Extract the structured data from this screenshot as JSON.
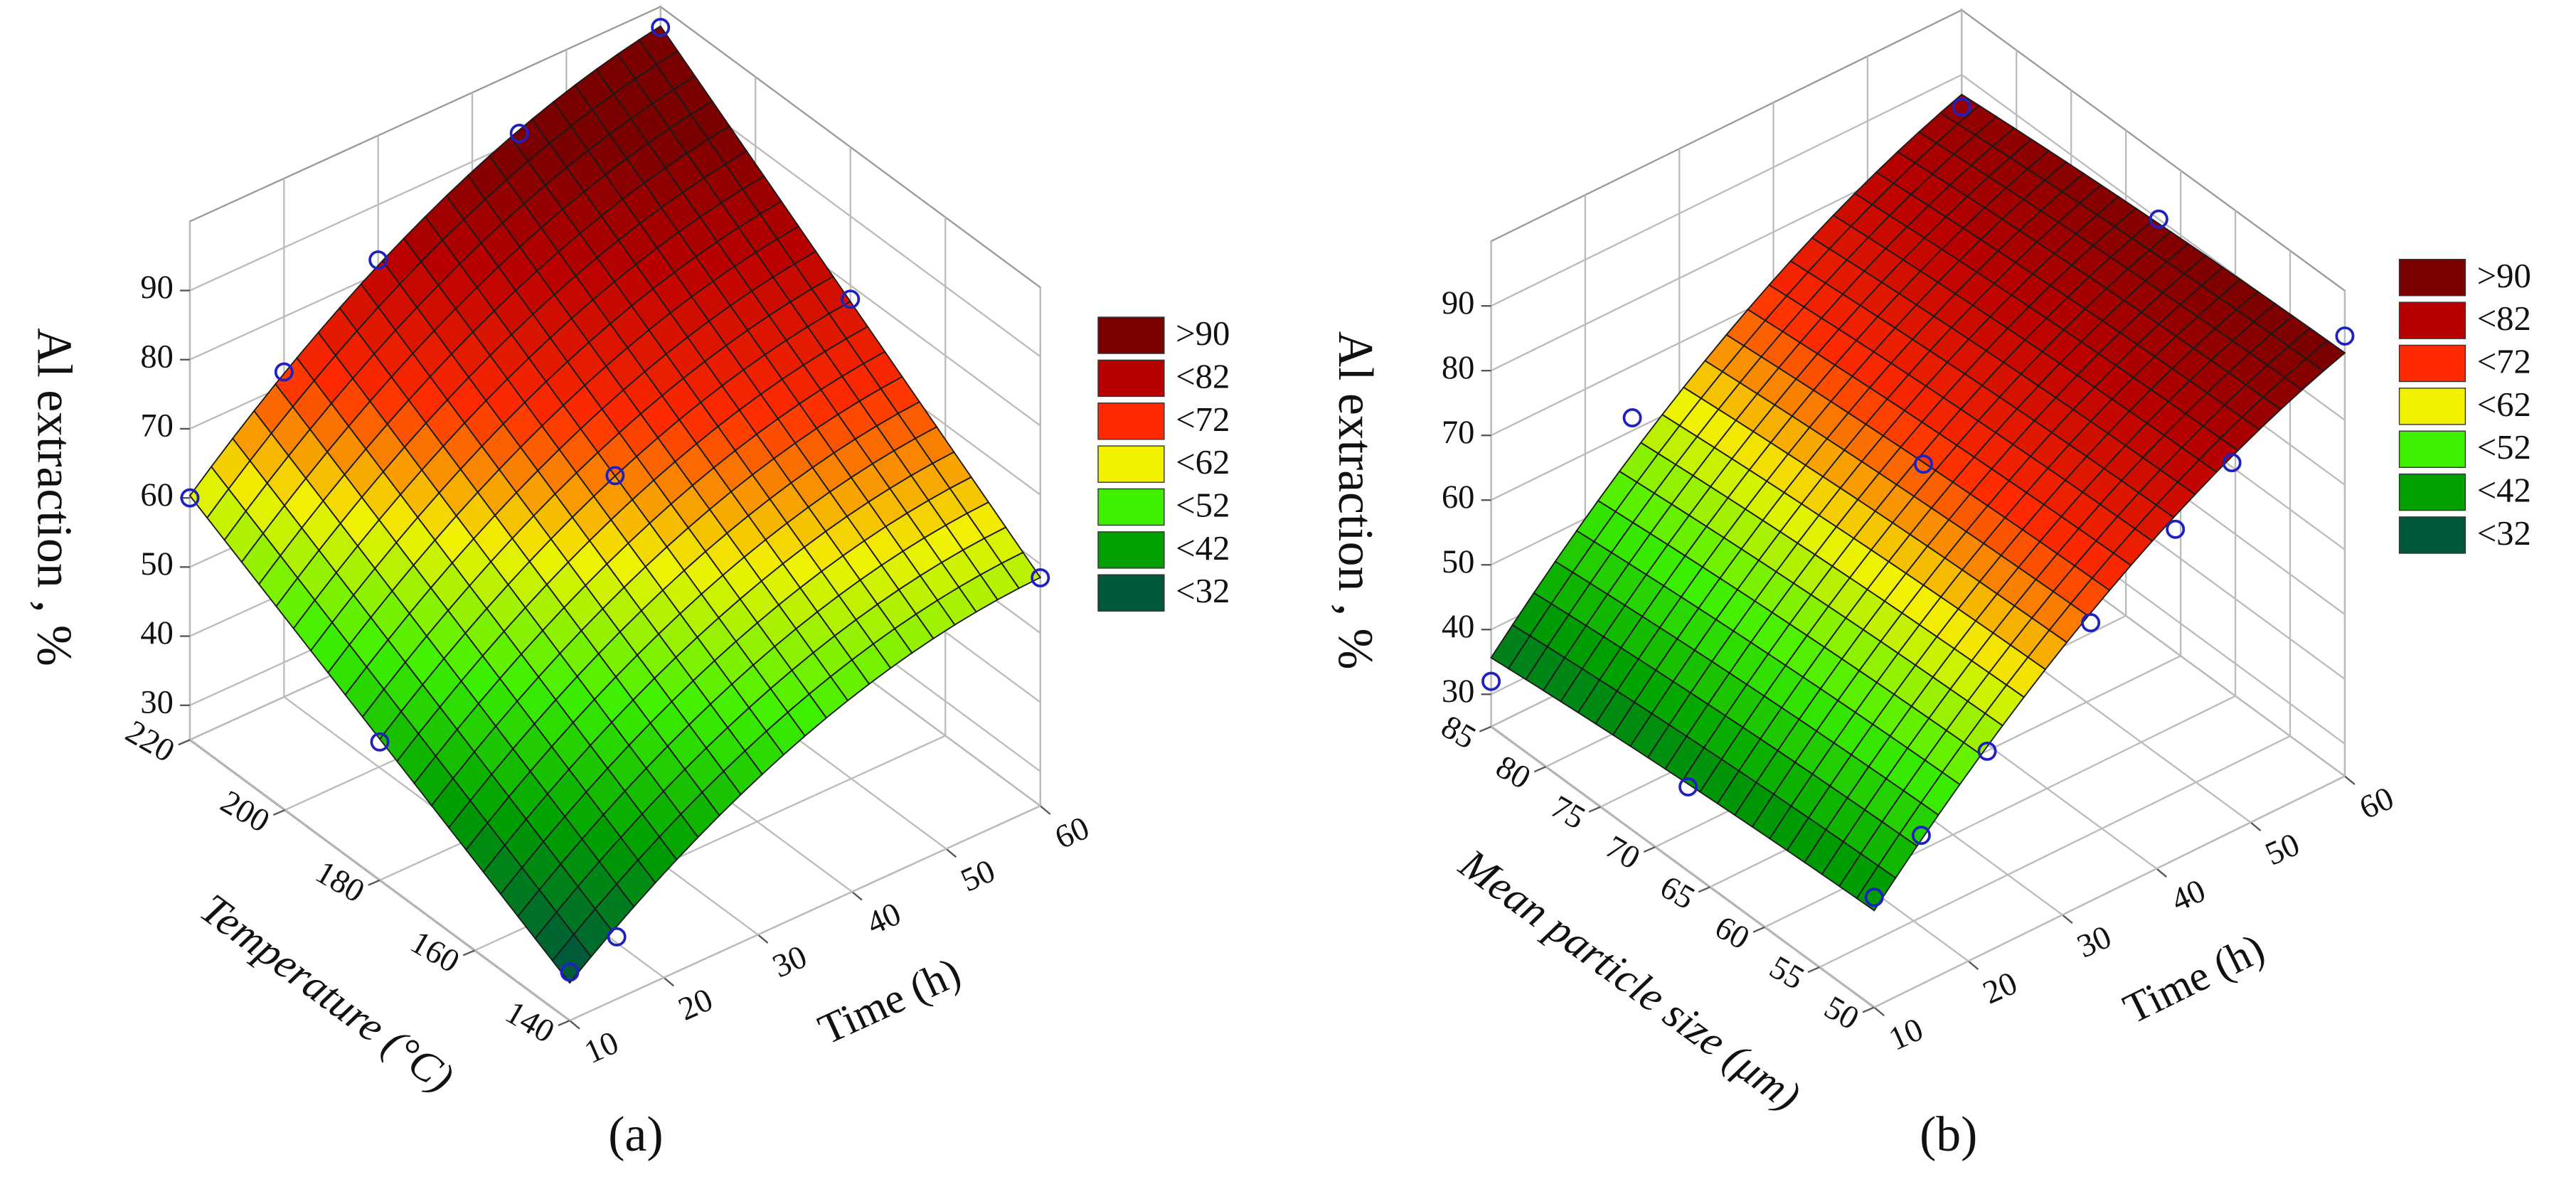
{
  "chart_data": [
    {
      "type": "surface",
      "panel_label": "(a)",
      "z_label": "Al extraction , %",
      "x_label": "Time (h)",
      "y_label": "Temperature (°C)",
      "xlim": [
        10,
        60
      ],
      "xticks": [
        10,
        20,
        30,
        40,
        50,
        60
      ],
      "ylim": [
        140,
        220
      ],
      "yticks": [
        140,
        160,
        180,
        200,
        220
      ],
      "zlim": [
        25,
        100
      ],
      "zticks": [
        30,
        40,
        50,
        60,
        70,
        80,
        90
      ],
      "legend": [
        {
          "value": 90,
          "label": ">90",
          "color": "#7b0000"
        },
        {
          "value": 82,
          "label": "<82",
          "color": "#b80000"
        },
        {
          "value": 72,
          "label": "<72",
          "color": "#ff2a00"
        },
        {
          "value": 62,
          "label": "<62",
          "color": "#f2f200"
        },
        {
          "value": 52,
          "label": "<52",
          "color": "#3cf000"
        },
        {
          "value": 42,
          "label": "<42",
          "color": "#00a000"
        },
        {
          "value": 32,
          "label": "<32",
          "color": "#005a3a"
        }
      ],
      "marker_color": "#2020c0",
      "points": {
        "x": [
          10,
          20,
          30,
          45,
          60,
          10,
          10,
          15,
          60,
          60,
          35
        ],
        "y": [
          220,
          220,
          220,
          220,
          220,
          180,
          140,
          140,
          140,
          180,
          180
        ],
        "z": [
          60,
          72,
          82,
          91,
          97,
          45,
          32,
          34,
          58,
          78,
          68
        ]
      }
    },
    {
      "type": "surface",
      "panel_label": "(b)",
      "z_label": "Al extraction , %",
      "x_label": "Time (h)",
      "y_label": "Mean particle size (μm)",
      "xlim": [
        10,
        60
      ],
      "xticks": [
        10,
        20,
        30,
        40,
        50,
        60
      ],
      "ylim": [
        50,
        85
      ],
      "yticks": [
        50,
        55,
        60,
        65,
        70,
        75,
        80,
        85
      ],
      "zlim": [
        25,
        100
      ],
      "zticks": [
        30,
        40,
        50,
        60,
        70,
        80,
        90
      ],
      "legend": [
        {
          "value": 90,
          "label": ">90",
          "color": "#7b0000"
        },
        {
          "value": 82,
          "label": "<82",
          "color": "#b80000"
        },
        {
          "value": 72,
          "label": "<72",
          "color": "#ff2a00"
        },
        {
          "value": 62,
          "label": "<62",
          "color": "#f2f200"
        },
        {
          "value": 52,
          "label": "<52",
          "color": "#3cf000"
        },
        {
          "value": 42,
          "label": "<42",
          "color": "#00a000"
        },
        {
          "value": 32,
          "label": "<32",
          "color": "#005a3a"
        }
      ],
      "marker_color": "#2020c0",
      "points": {
        "x": [
          10,
          25,
          60,
          60,
          60,
          48,
          42,
          33,
          22,
          15,
          10,
          10,
          35
        ],
        "y": [
          85,
          85,
          85,
          67,
          50,
          50,
          50,
          50,
          50,
          50,
          50,
          67,
          67
        ],
        "z": [
          32,
          62,
          85,
          90,
          93,
          82,
          76,
          68,
          56,
          48,
          42,
          38,
          70
        ]
      }
    }
  ]
}
